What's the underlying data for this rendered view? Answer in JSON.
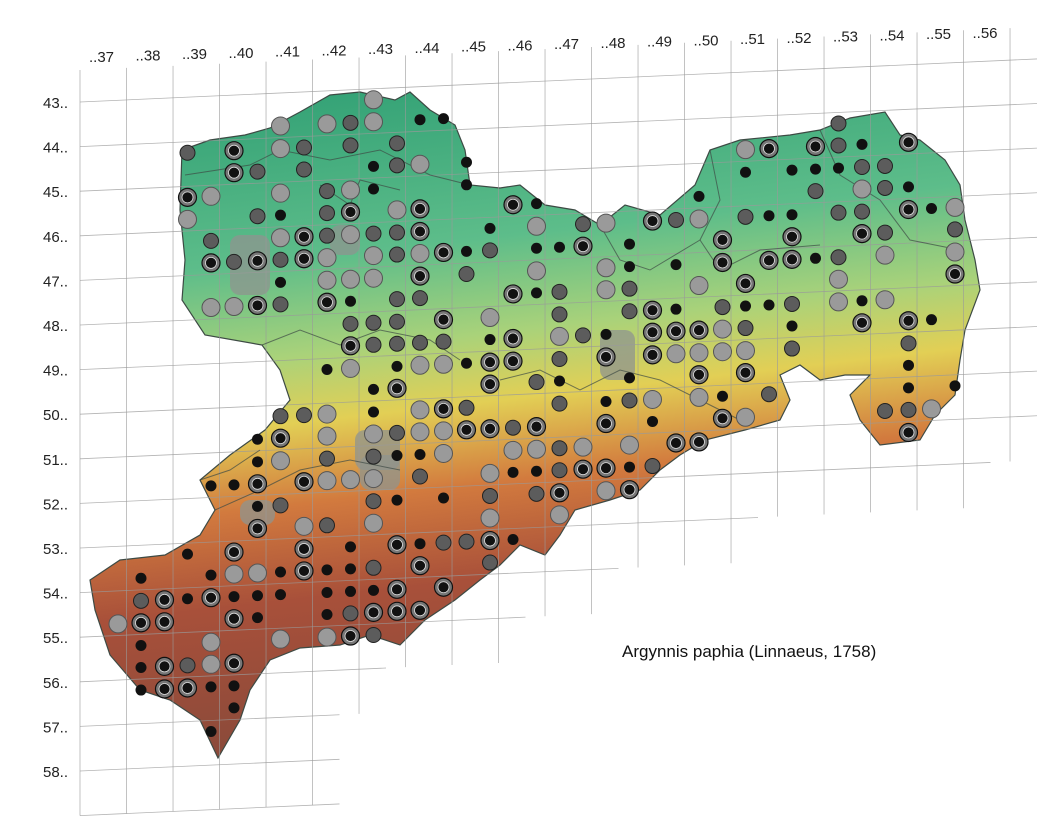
{
  "map": {
    "species": "Argynnis paphia (Linnaeus, 1758)",
    "column_labels": [
      "..37",
      "..38",
      "..39",
      "..40",
      "..41",
      "..42",
      "..43",
      "..44",
      "..45",
      "..46",
      "..47",
      "..48",
      "..49",
      "..50",
      "..51",
      "..52",
      "..53",
      "..54",
      "..55",
      "..56"
    ],
    "row_labels": [
      "43..",
      "44..",
      "45..",
      "46..",
      "47..",
      "48..",
      "49..",
      "50..",
      "51..",
      "52..",
      "53..",
      "54..",
      "55..",
      "56..",
      "57..",
      "58.."
    ],
    "colors": {
      "lowland": "#5ab88a",
      "hills": "#d6c64a",
      "mountains": "#b8573a",
      "grid": "#9a9a9a",
      "record_recent": "#111111",
      "record_old": "#9a9a9a"
    },
    "legend_types": [
      "record-recent",
      "record-medium",
      "record-old",
      "record-ringed"
    ]
  }
}
